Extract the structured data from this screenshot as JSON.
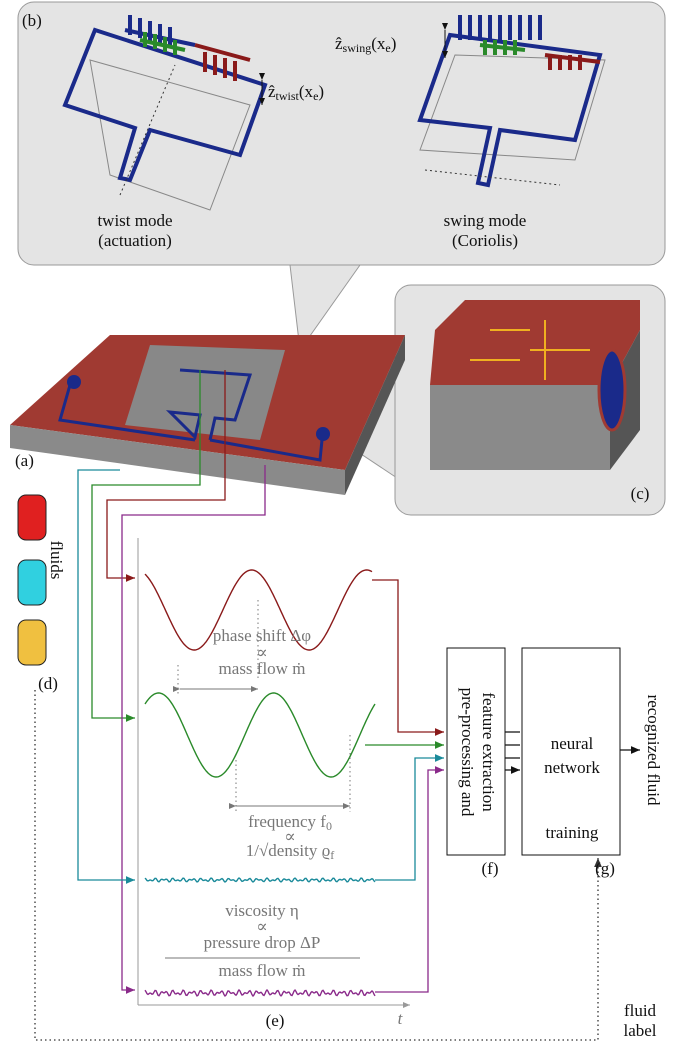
{
  "panel_b": {
    "label": "(b)",
    "twist": {
      "name": "twist mode",
      "note": "(actuation)",
      "amp": {
        "base": "ẑ",
        "sub": "twist",
        "arg": "(x",
        "argsub": "e",
        "close": ")"
      }
    },
    "swing": {
      "name": "swing mode",
      "note": "(Coriolis)",
      "amp": {
        "base": "ẑ",
        "sub": "swing",
        "arg": "(x",
        "argsub": "e",
        "close": ")"
      }
    }
  },
  "panel_a": {
    "label": "(a)"
  },
  "panel_c": {
    "label": "(c)"
  },
  "panel_d": {
    "label": "(d)",
    "fluids": "fluids"
  },
  "panel_e": {
    "label": "(e)",
    "time_axis": "t",
    "phase": {
      "line1": "phase shift Δφ",
      "prop": "∝",
      "line2": "mass flow ṁ"
    },
    "frequency": {
      "line1": "frequency f",
      "line1_sub": "0",
      "prop": "∝",
      "line2": "1/√density ϱ",
      "line2_sub": "f"
    },
    "viscosity": {
      "line1": "viscosity η",
      "prop": "∝",
      "numerator": "pressure drop ΔP",
      "denominator": "mass flow ṁ"
    }
  },
  "panel_f": {
    "label": "(f)",
    "line1": "pre-processing and",
    "line2": "feature extraction"
  },
  "panel_g": {
    "label": "(g)",
    "line1": "neural",
    "line2": "network",
    "training": "training"
  },
  "output": "recognized fluid",
  "fluid_label": {
    "line1": "fluid",
    "line2": "label"
  }
}
